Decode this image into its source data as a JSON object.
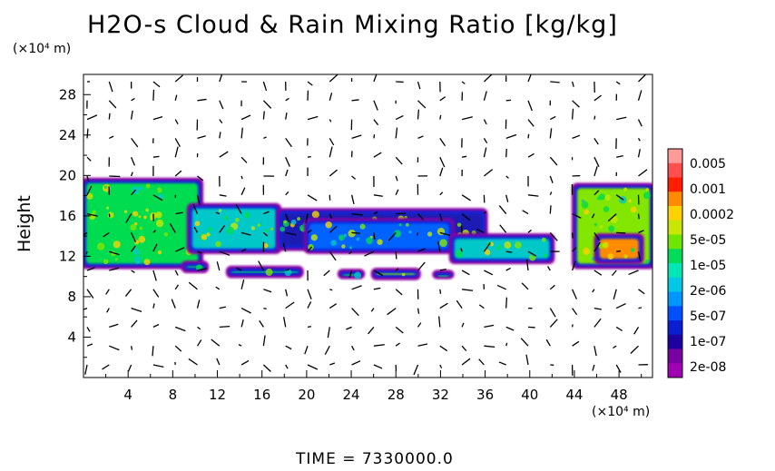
{
  "chart_data": {
    "type": "heatmap",
    "title": "H2O-s Cloud & Rain Mixing Ratio [kg/kg]",
    "ylabel": "Height",
    "x_unit": "(×10⁴ m)",
    "y_unit": "(×10⁴ m)",
    "xlim": [
      0,
      51
    ],
    "ylim": [
      0,
      30
    ],
    "x_ticks": [
      4,
      8,
      12,
      16,
      20,
      24,
      28,
      32,
      36,
      40,
      44,
      48
    ],
    "y_ticks": [
      4,
      8,
      12,
      16,
      20,
      24,
      28
    ],
    "colorbar": {
      "labels": [
        "0.005",
        "0.001",
        "0.0002",
        "5e-05",
        "1e-05",
        "2e-06",
        "5e-07",
        "1e-07",
        "2e-08"
      ],
      "colors": [
        "#ff9a9a",
        "#ff5050",
        "#ff1e00",
        "#ff8c00",
        "#ffd200",
        "#c8e600",
        "#6ee600",
        "#00dc5a",
        "#00e6b4",
        "#00c8e6",
        "#0096ff",
        "#0050ff",
        "#0a1ed2",
        "#1e00a0",
        "#7800a0",
        "#a000b4"
      ]
    },
    "regions": [
      {
        "x": [
          0,
          10.5
        ],
        "y": [
          11,
          19.5
        ],
        "level": "1e-05"
      },
      {
        "x": [
          9.5,
          17.5
        ],
        "y": [
          12.5,
          17
        ],
        "level": "2e-06"
      },
      {
        "x": [
          17.5,
          36
        ],
        "y": [
          12.8,
          16.5
        ],
        "level": "2e-07"
      },
      {
        "x": [
          20,
          33
        ],
        "y": [
          12.5,
          15.5
        ],
        "level": "5e-07"
      },
      {
        "x": [
          33,
          42
        ],
        "y": [
          11.5,
          14
        ],
        "level": "2e-06"
      },
      {
        "x": [
          44,
          51
        ],
        "y": [
          11,
          19
        ],
        "level": "5e-05"
      },
      {
        "x": [
          46,
          50
        ],
        "y": [
          11.5,
          14
        ],
        "level": "0.0002"
      },
      {
        "x": [
          9,
          11
        ],
        "y": [
          10.6,
          11.3
        ],
        "level": "1e-05"
      },
      {
        "x": [
          13,
          19.5
        ],
        "y": [
          10.1,
          10.8
        ],
        "level": "1e-05"
      },
      {
        "x": [
          26,
          30
        ],
        "y": [
          9.9,
          10.6
        ],
        "level": "5e-05"
      },
      {
        "x": [
          23,
          25
        ],
        "y": [
          10,
          10.5
        ],
        "level": "1e-05"
      },
      {
        "x": [
          31.5,
          33
        ],
        "y": [
          10,
          10.4
        ],
        "level": "1e-05"
      }
    ]
  },
  "time_label": "TIME  =  7330000.0"
}
